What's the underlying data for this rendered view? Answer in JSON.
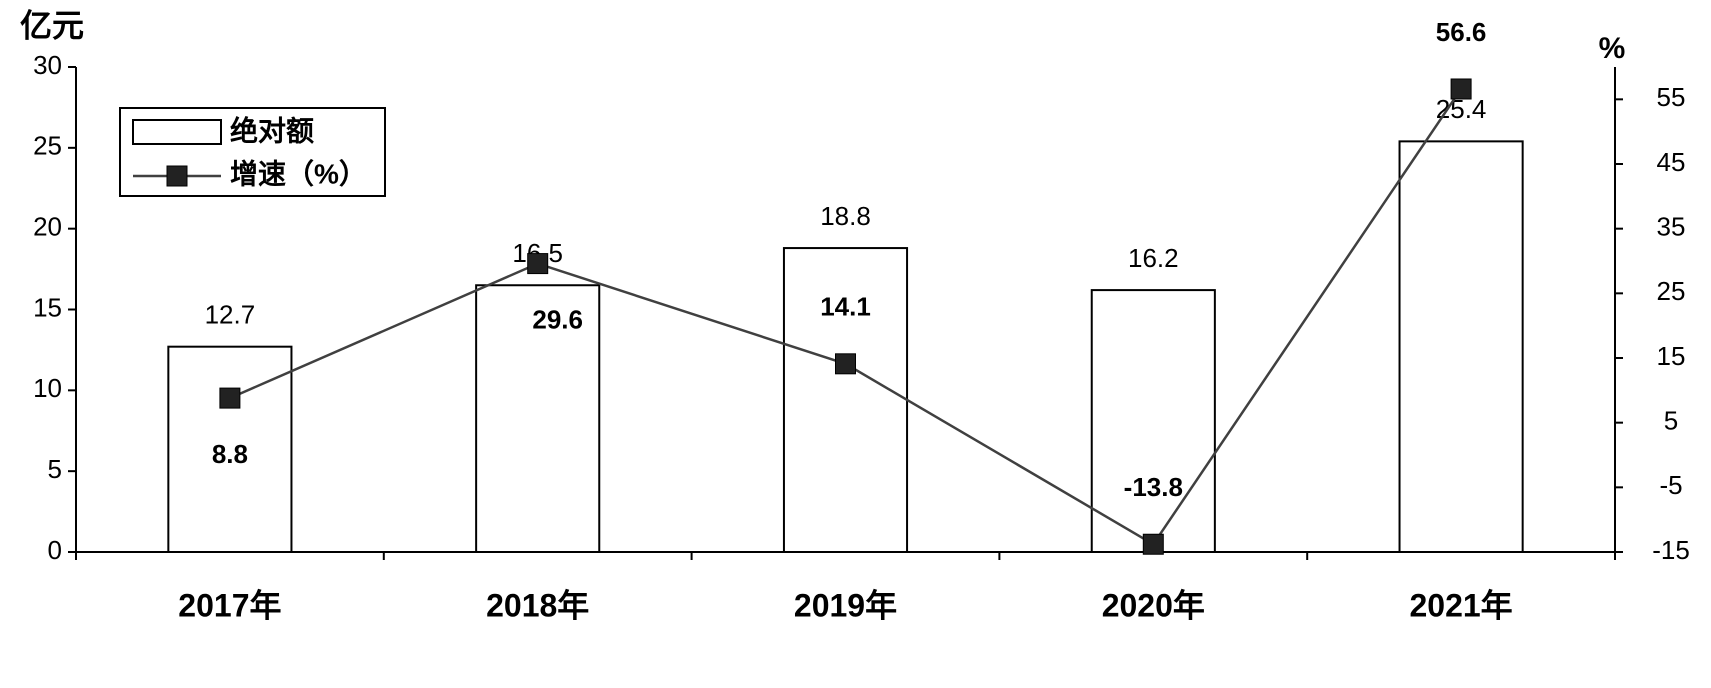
{
  "chart_data": {
    "type": "bar_line",
    "y_label": "亿元",
    "y2_label": "%",
    "categories": [
      "2017年",
      "2018年",
      "2019年",
      "2020年",
      "2021年"
    ],
    "series": [
      {
        "name": "绝对额",
        "type": "bar",
        "color": "#ffffff",
        "values": [
          12.7,
          16.5,
          18.8,
          16.2,
          25.4
        ]
      },
      {
        "name": "增速（%）",
        "type": "line",
        "axis": "y2",
        "color": "#404040",
        "values": [
          8.8,
          29.6,
          14.1,
          -13.8,
          56.6
        ]
      }
    ],
    "ylim": [
      0,
      30
    ],
    "yticks": [
      0,
      5,
      10,
      15,
      20,
      25,
      30
    ],
    "y2lim": [
      -15,
      60
    ],
    "y2ticks": [
      -15,
      -5,
      5,
      15,
      25,
      35,
      45,
      55
    ],
    "legend": "top-left"
  }
}
